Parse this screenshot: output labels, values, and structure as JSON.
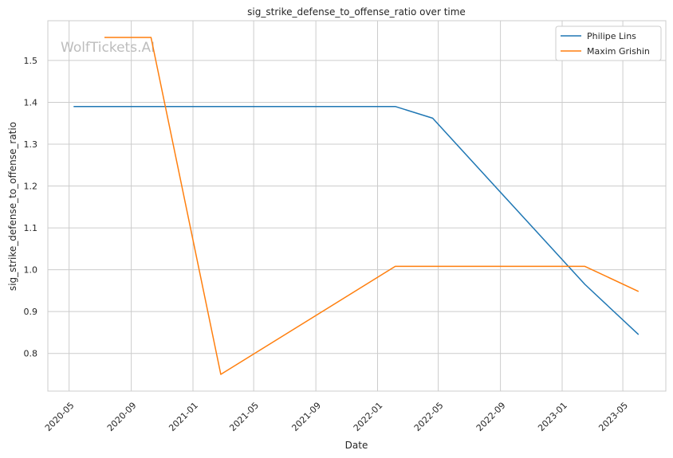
{
  "chart_data": {
    "type": "line",
    "title": "sig_strike_defense_to_offense_ratio over time",
    "xlabel": "Date",
    "ylabel": "sig_strike_defense_to_offense_ratio",
    "watermark": "WolfTickets.AI",
    "xlim": [
      "2020-03-20",
      "2023-07-25"
    ],
    "ylim": [
      0.71,
      1.595
    ],
    "x_ticks": [
      "2020-05-01",
      "2020-09-01",
      "2021-01-01",
      "2021-05-01",
      "2021-09-01",
      "2022-01-01",
      "2022-05-01",
      "2022-09-01",
      "2023-01-01",
      "2023-05-01"
    ],
    "x_tick_labels": [
      "2020-05",
      "2020-09",
      "2021-01",
      "2021-05",
      "2021-09",
      "2022-01",
      "2022-05",
      "2022-09",
      "2023-01",
      "2023-05"
    ],
    "y_ticks": [
      0.8,
      0.9,
      1.0,
      1.1,
      1.2,
      1.3,
      1.4,
      1.5
    ],
    "y_tick_labels": [
      "0.8",
      "0.9",
      "1.0",
      "1.1",
      "1.2",
      "1.3",
      "1.4",
      "1.5"
    ],
    "grid": true,
    "legend_position": "top-right",
    "series": [
      {
        "name": "Philipe Lins",
        "color": "#1f77b4",
        "x": [
          "2020-05-10",
          "2022-02-05",
          "2022-04-20",
          "2023-02-15",
          "2023-06-01"
        ],
        "y": [
          1.39,
          1.39,
          1.362,
          0.965,
          0.845
        ]
      },
      {
        "name": "Maxim Grishin",
        "color": "#ff7f0e",
        "x": [
          "2020-07-10",
          "2020-10-10",
          "2021-02-25",
          "2022-02-05",
          "2023-02-15",
          "2023-06-01"
        ],
        "y": [
          1.555,
          1.555,
          0.75,
          1.008,
          1.008,
          0.948
        ]
      }
    ]
  }
}
